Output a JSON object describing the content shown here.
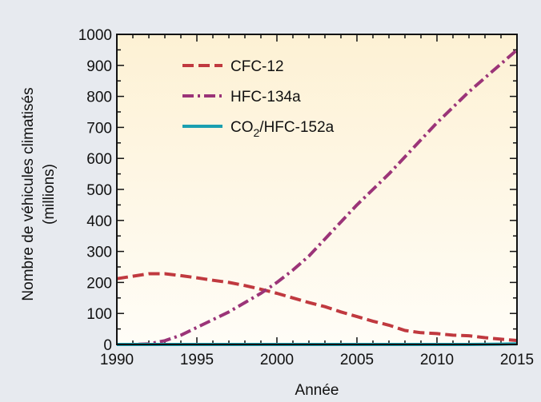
{
  "colors": {
    "background": "#e7eaef",
    "plot_top": "#fdf1d4",
    "plot_bottom": "#fffdf7",
    "axis": "#111111"
  },
  "chart_data": {
    "type": "line",
    "title": "",
    "xlabel": "Année",
    "ylabel": "Nombre de véhicules climatisés",
    "ylabel_unit": "(millions)",
    "xlim": [
      1990,
      2015
    ],
    "ylim": [
      0,
      1000
    ],
    "xticks": [
      1990,
      1995,
      2000,
      2005,
      2010,
      2015
    ],
    "yticks": [
      0,
      100,
      200,
      300,
      400,
      500,
      600,
      700,
      800,
      900,
      1000
    ],
    "grid": false,
    "legend_position": "top-left",
    "series": [
      {
        "name": "CFC-12",
        "color": "#c0393f",
        "dash": "dashed",
        "x": [
          1990,
          1991,
          1992,
          1993,
          1994,
          1995,
          1996,
          1997,
          1998,
          1999,
          2000,
          2001,
          2002,
          2003,
          2004,
          2005,
          2006,
          2007,
          2008,
          2009,
          2010,
          2011,
          2012,
          2013,
          2014,
          2015
        ],
        "y": [
          212,
          220,
          228,
          228,
          222,
          215,
          207,
          200,
          190,
          178,
          165,
          150,
          135,
          122,
          105,
          90,
          75,
          62,
          45,
          38,
          35,
          30,
          28,
          22,
          17,
          13
        ]
      },
      {
        "name": "HFC-134a",
        "color": "#9b3478",
        "dash": "dashdot",
        "x": [
          1990,
          1991,
          1992,
          1993,
          1994,
          1995,
          1996,
          1997,
          1998,
          1999,
          2000,
          2001,
          2002,
          2003,
          2004,
          2005,
          2006,
          2007,
          2008,
          2009,
          2010,
          2011,
          2012,
          2013,
          2014,
          2015
        ],
        "y": [
          0,
          0,
          2,
          12,
          30,
          55,
          80,
          105,
          135,
          165,
          200,
          240,
          285,
          340,
          395,
          450,
          500,
          550,
          605,
          660,
          715,
          765,
          815,
          860,
          905,
          950
        ]
      },
      {
        "name": "CO₂/HFC-152a",
        "label_main": "CO",
        "label_sub": "2",
        "label_rest": "/HFC-152a",
        "color": "#1a9fb0",
        "dash": "solid",
        "x": [
          1990,
          1995,
          2000,
          2005,
          2010,
          2012,
          2014,
          2015
        ],
        "y": [
          0,
          0,
          0,
          0,
          0,
          0,
          1,
          2
        ]
      }
    ]
  }
}
